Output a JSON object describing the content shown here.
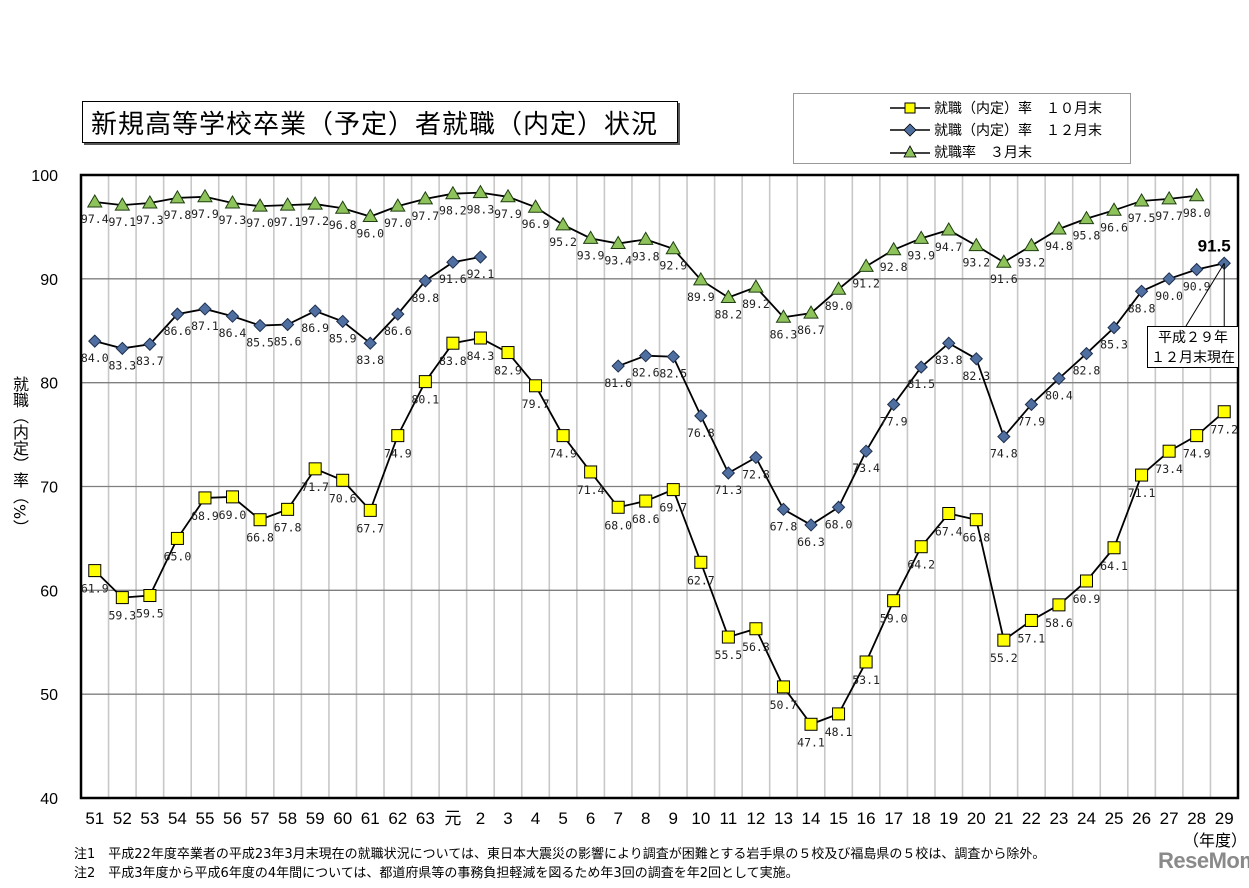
{
  "title": "新規高等学校卒業（予定）者就職（内定）状況",
  "legend": [
    {
      "label": "就職（内定）率　１０月末",
      "marker": "square",
      "color": "#ffff00"
    },
    {
      "label": "就職（内定）率　１２月末",
      "marker": "diamond",
      "color": "#4f6fa0"
    },
    {
      "label": "就職率　３月末",
      "marker": "triangle",
      "color": "#8ec25a"
    }
  ],
  "y_axis_label": "就職（内定）率（%）",
  "x_axis_unit": "（年度）",
  "callout": {
    "line1": "平成２９年",
    "line2": "１２月末現在"
  },
  "highlight_value": "91.5",
  "notes": [
    "注1　平成22年度卒業者の平成23年3月末現在の就職状況については、東日本大震災の影響により調査が困難とする岩手県の５校及び福島県の５校は、調査から除外。",
    "注2　平成3年度から平成6年度の4年間については、都道府県等の事務負担軽減を図るため年3回の調査を年2回として実施。"
  ],
  "watermark": "ReseMom",
  "chart_data": {
    "type": "line",
    "title": "新規高等学校卒業（予定）者就職（内定）状況",
    "xlabel": "（年度）",
    "ylabel": "就職（内定）率（%）",
    "ylim": [
      40,
      100
    ],
    "yticks": [
      40,
      50,
      60,
      70,
      80,
      90,
      100
    ],
    "grid": true,
    "legend_position": "top-right",
    "categories": [
      "51",
      "52",
      "53",
      "54",
      "55",
      "56",
      "57",
      "58",
      "59",
      "60",
      "61",
      "62",
      "63",
      "元",
      "2",
      "3",
      "4",
      "5",
      "6",
      "7",
      "8",
      "9",
      "10",
      "11",
      "12",
      "13",
      "14",
      "15",
      "16",
      "17",
      "18",
      "19",
      "20",
      "21",
      "22",
      "23",
      "24",
      "25",
      "26",
      "27",
      "28",
      "29"
    ],
    "series": [
      {
        "name": "就職（内定）率　１０月末",
        "marker": "square",
        "color": "#ffff00",
        "values": [
          61.9,
          59.3,
          59.5,
          65.0,
          68.9,
          69.0,
          66.8,
          67.8,
          71.7,
          70.6,
          67.7,
          74.9,
          80.1,
          83.8,
          84.3,
          82.9,
          79.7,
          74.9,
          71.4,
          68.0,
          68.6,
          69.7,
          62.7,
          55.5,
          56.3,
          50.7,
          47.1,
          48.1,
          53.1,
          59.0,
          64.2,
          67.4,
          66.8,
          55.2,
          57.1,
          58.6,
          60.9,
          64.1,
          71.1,
          73.4,
          74.9,
          77.2
        ]
      },
      {
        "name": "就職（内定）率　１２月末",
        "marker": "diamond",
        "color": "#4f6fa0",
        "values": [
          84.0,
          83.3,
          83.7,
          86.6,
          87.1,
          86.4,
          85.5,
          85.6,
          86.9,
          85.9,
          83.8,
          86.6,
          89.8,
          91.6,
          92.1,
          null,
          null,
          null,
          null,
          81.6,
          82.6,
          82.5,
          76.8,
          71.3,
          72.8,
          67.8,
          66.3,
          68.0,
          73.4,
          77.9,
          81.5,
          83.8,
          82.3,
          74.8,
          77.9,
          80.4,
          82.8,
          85.3,
          88.8,
          90.0,
          90.9,
          91.5
        ]
      },
      {
        "name": "就職率　３月末",
        "marker": "triangle",
        "color": "#8ec25a",
        "values": [
          97.4,
          97.1,
          97.3,
          97.8,
          97.9,
          97.3,
          97.0,
          97.1,
          97.2,
          96.8,
          96.0,
          97.0,
          97.7,
          98.2,
          98.3,
          97.9,
          96.9,
          95.2,
          93.9,
          93.4,
          93.8,
          92.9,
          89.9,
          88.2,
          89.2,
          86.3,
          86.7,
          89.0,
          91.2,
          92.8,
          93.9,
          94.7,
          93.2,
          91.6,
          93.2,
          94.8,
          95.8,
          96.6,
          97.5,
          97.7,
          98.0,
          null
        ]
      }
    ],
    "annotations": [
      {
        "text": "91.5",
        "at": "29",
        "series": "就職（内定）率　１２月末"
      },
      {
        "text": "平成２９年 １２月末現在",
        "type": "callout"
      }
    ]
  }
}
